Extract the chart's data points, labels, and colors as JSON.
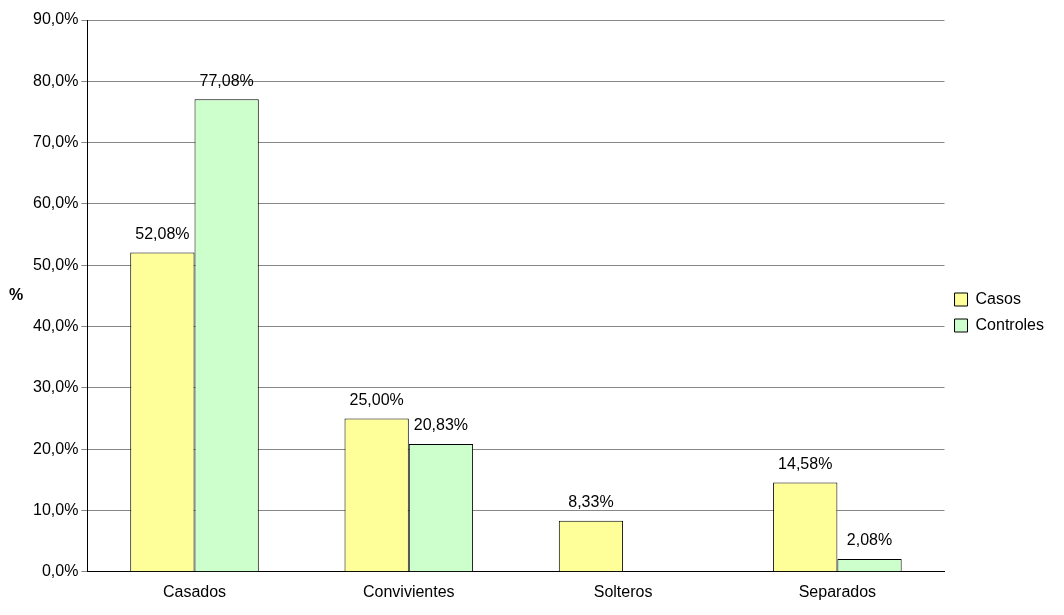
{
  "chart_data": {
    "type": "bar",
    "ylabel": "%",
    "categories": [
      "Casados",
      "Convivientes",
      "Solteros",
      "Separados"
    ],
    "series": [
      {
        "name": "Casos",
        "color": "#ffff99",
        "values": [
          52.08,
          25.0,
          8.33,
          14.58
        ],
        "value_labels": [
          "52,08%",
          "25,00%",
          "8,33%",
          "14,58%"
        ]
      },
      {
        "name": "Controles",
        "color": "#ccffcc",
        "values": [
          77.08,
          20.83,
          0,
          2.08
        ],
        "value_labels": [
          "77,08%",
          "20,83%",
          null,
          "2,08%"
        ]
      }
    ],
    "ylim": [
      0,
      90
    ],
    "yticks": [
      {
        "value": 0,
        "label": "0,0%"
      },
      {
        "value": 10,
        "label": "10,0%"
      },
      {
        "value": 20,
        "label": "20,0%"
      },
      {
        "value": 30,
        "label": "30,0%"
      },
      {
        "value": 40,
        "label": "40,0%"
      },
      {
        "value": 50,
        "label": "50,0%"
      },
      {
        "value": 60,
        "label": "60,0%"
      },
      {
        "value": 70,
        "label": "70,0%"
      },
      {
        "value": 80,
        "label": "80,0%"
      },
      {
        "value": 90,
        "label": "90,0%"
      }
    ],
    "grid": "y",
    "legend": "right"
  }
}
